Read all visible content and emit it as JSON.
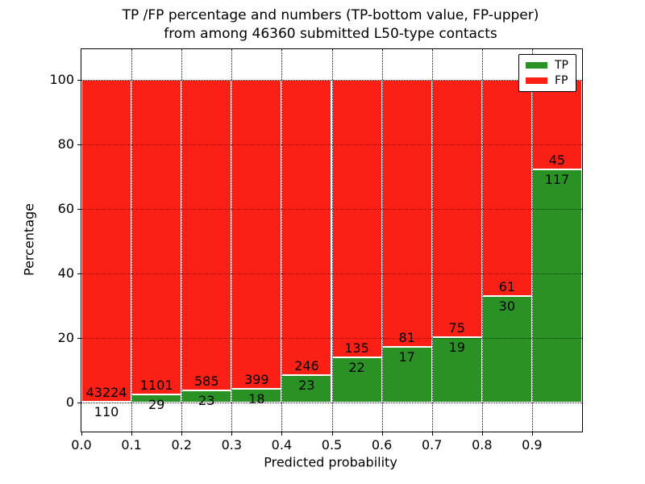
{
  "title": {
    "line1": "TP /FP percentage and numbers (TP-bottom value, FP-upper)",
    "line2": "from among 46360 submitted L50-type contacts"
  },
  "axes": {
    "ylabel": "Percentage",
    "xlabel": "Predicted probability",
    "y_ticks": [
      0,
      20,
      40,
      60,
      80,
      100
    ],
    "x_ticks": [
      "0.0",
      "0.1",
      "0.2",
      "0.3",
      "0.4",
      "0.5",
      "0.6",
      "0.7",
      "0.8",
      "0.9"
    ]
  },
  "legend": {
    "items": [
      {
        "label": "TP",
        "color": "#2a9225"
      },
      {
        "label": "FP",
        "color": "#fb2015"
      }
    ]
  },
  "colors": {
    "tp": "#2a9225",
    "fp": "#fb2015",
    "bar_edge": "#ffffff",
    "grid": "#111111"
  },
  "chart_data": {
    "type": "bar",
    "stacked": true,
    "normalized_to_percent": true,
    "title": "TP /FP percentage and numbers (TP-bottom value, FP-upper) from among 46360 submitted L50-type contacts",
    "xlabel": "Predicted probability",
    "ylabel": "Percentage",
    "ylim": [
      0,
      100
    ],
    "grid": true,
    "legend_position": "upper right",
    "total_contacts": 46360,
    "bin_edges": [
      0.0,
      0.1,
      0.2,
      0.3,
      0.4,
      0.5,
      0.6,
      0.7,
      0.8,
      0.9,
      1.0
    ],
    "categories": [
      "0.0-0.1",
      "0.1-0.2",
      "0.2-0.3",
      "0.3-0.4",
      "0.4-0.5",
      "0.5-0.6",
      "0.6-0.7",
      "0.7-0.8",
      "0.8-0.9",
      "0.9-1.0"
    ],
    "series": [
      {
        "name": "TP",
        "counts": [
          110,
          29,
          23,
          18,
          23,
          22,
          17,
          19,
          30,
          117
        ]
      },
      {
        "name": "FP",
        "counts": [
          43224,
          1101,
          585,
          399,
          246,
          135,
          81,
          75,
          61,
          45
        ]
      }
    ]
  }
}
